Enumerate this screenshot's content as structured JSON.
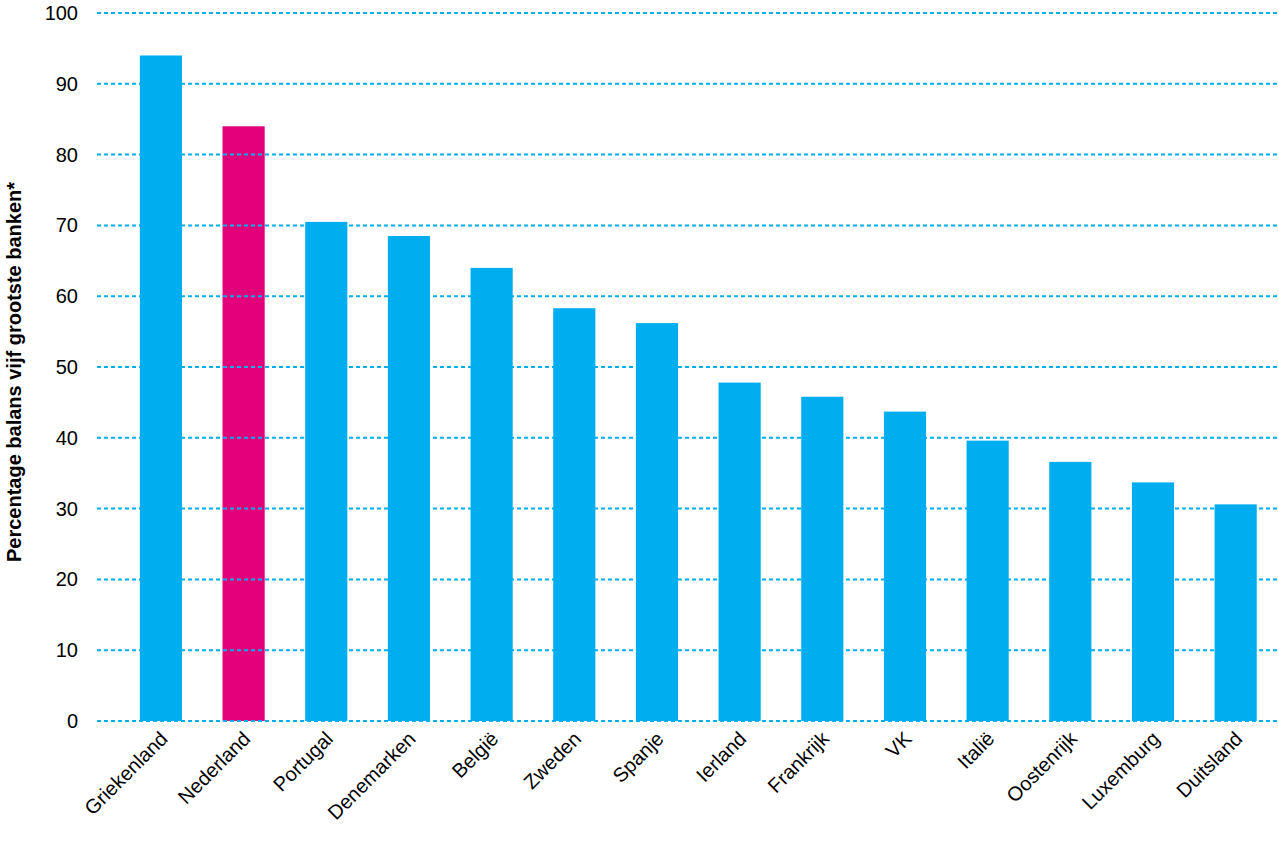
{
  "chart_data": {
    "type": "bar",
    "y_label": "Percentage balans vijf grootste banken*",
    "categories": [
      "Griekenland",
      "Nederland",
      "Portugal",
      "Denemarken",
      "België",
      "Zweden",
      "Spanje",
      "Ierland",
      "Frankrijk",
      "VK",
      "Italië",
      "Oostenrijk",
      "Luxemburg",
      "Duitsland"
    ],
    "values": [
      94,
      84,
      70.5,
      68.5,
      64,
      58.3,
      56.2,
      47.8,
      45.8,
      43.7,
      39.6,
      36.6,
      33.7,
      30.6
    ],
    "colors": [
      "#00aeef",
      "#e2007a",
      "#00aeef",
      "#00aeef",
      "#00aeef",
      "#00aeef",
      "#00aeef",
      "#00aeef",
      "#00aeef",
      "#00aeef",
      "#00aeef",
      "#00aeef",
      "#00aeef",
      "#00aeef"
    ],
    "ylim": [
      0,
      100
    ],
    "yticks": [
      0,
      10,
      20,
      30,
      40,
      50,
      60,
      70,
      80,
      90,
      100
    ],
    "grid": true
  }
}
